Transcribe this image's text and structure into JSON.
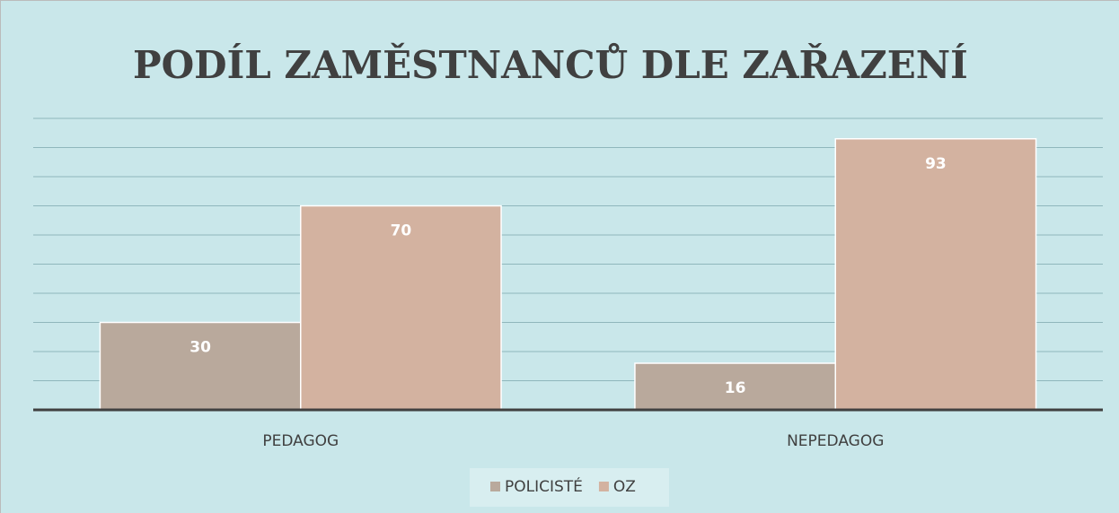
{
  "chart_data": {
    "type": "bar",
    "title": "PODÍL ZAMĚSTNANCŮ DLE ZAŘAZENÍ",
    "categories": [
      "PEDAGOG",
      "NEPEDAGOG"
    ],
    "series": [
      {
        "name": "POLICISTÉ",
        "color": "#b9a99c",
        "values": [
          30,
          16
        ]
      },
      {
        "name": "OZ",
        "color": "#d3b2a0",
        "values": [
          70,
          93
        ]
      }
    ],
    "ylim": [
      0,
      100
    ],
    "yticks": [
      0,
      10,
      20,
      30,
      40,
      50,
      60,
      70,
      80,
      90,
      100
    ],
    "grid": true,
    "legend": "bottom"
  }
}
